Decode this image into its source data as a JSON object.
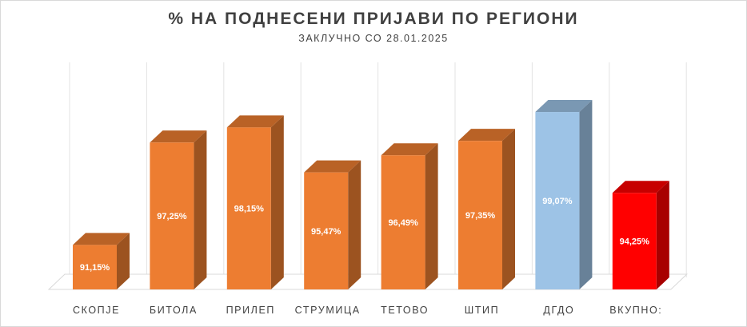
{
  "chart_data": {
    "type": "bar",
    "title": "% НА ПОДНЕСЕНИ ПРИЈАВИ ПО РЕГИОНИ",
    "subtitle": "ЗАКЛУЧНО СО 28.01.2025",
    "categories": [
      "СКОПЈЕ",
      "БИТОЛА",
      "ПРИЛЕП",
      "СТРУМИЦА",
      "ТЕТОВО",
      "ШТИП",
      "ДГДО",
      "ВКУПНО:"
    ],
    "values": [
      91.15,
      97.25,
      98.15,
      95.47,
      96.49,
      97.35,
      99.07,
      94.25
    ],
    "value_labels": [
      "91,15%",
      "97,25%",
      "98,15%",
      "95,47%",
      "96,49%",
      "97,35%",
      "99,07%",
      "94,25%"
    ],
    "ylim": [
      88.5,
      100.5
    ],
    "grid": true,
    "style": "3d-column",
    "bar_colors": [
      "#ED7D31",
      "#ED7D31",
      "#ED7D31",
      "#ED7D31",
      "#ED7D31",
      "#ED7D31",
      "#9DC3E6",
      "#FF0000"
    ]
  }
}
